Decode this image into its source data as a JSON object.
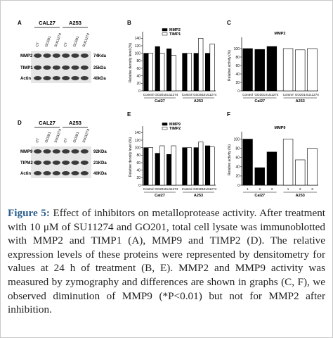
{
  "blots": [
    {
      "label": "A",
      "groups": [
        "CAL27",
        "A253"
      ],
      "lanes": [
        "CT",
        "GO201",
        "SU11274",
        "CT",
        "GO201",
        "SU11274"
      ],
      "rows": [
        {
          "name": "MMP2",
          "size": "74Kda"
        },
        {
          "name": "TIMP1",
          "size": "25kDa"
        },
        {
          "name": "Actin",
          "size": "40kDa"
        }
      ]
    },
    {
      "label": "D",
      "groups": [
        "CAL27",
        "A253"
      ],
      "lanes": [
        "CT",
        "GO201",
        "SU11274",
        "CT",
        "GO201",
        "SU11274"
      ],
      "rows": [
        {
          "name": "MMP9",
          "size": "92KDa"
        },
        {
          "name": "TIPM2",
          "size": "21KDa"
        },
        {
          "name": "Actin",
          "size": "40KDa"
        }
      ]
    }
  ],
  "chart_data": [
    {
      "type": "bar",
      "label": "B",
      "y_label": "Relative density level (%)",
      "categories": [
        "Control",
        "GO201",
        "SU11274",
        "Control",
        "GO201",
        "SU11274"
      ],
      "groups": [
        "Cal27",
        "A253"
      ],
      "series": [
        {
          "name": "MMP2",
          "color": "#000000",
          "values": [
            100,
            118,
            112,
            100,
            100,
            100
          ]
        },
        {
          "name": "TIMP1",
          "color": "#ffffff",
          "values": [
            100,
            100,
            95,
            100,
            140,
            125
          ]
        }
      ],
      "ylim": [
        0,
        150
      ],
      "yticks": [
        0,
        20,
        40,
        60,
        80,
        100,
        120,
        140
      ]
    },
    {
      "type": "bar",
      "label": "C",
      "title": "MMP2",
      "y_label": "Relative activity (%)",
      "categories": [
        "Control",
        "GO201",
        "SU11274",
        "Control",
        "GO201",
        "SU11274"
      ],
      "groups": [
        "Cal27",
        "A253"
      ],
      "series": [
        {
          "color": "#000000",
          "values": [
            100,
            98,
            105,
            null,
            null,
            null
          ]
        },
        {
          "color": "#ffffff",
          "values": [
            null,
            null,
            null,
            100,
            97,
            100
          ]
        }
      ],
      "ylim": [
        0,
        120
      ],
      "yticks": [
        0,
        20,
        40,
        60,
        80,
        100
      ]
    },
    {
      "type": "bar",
      "label": "E",
      "y_label": "Relative density level (%)",
      "categories": [
        "Control",
        "GO201",
        "SU11274",
        "Control",
        "GO201",
        "SU11274"
      ],
      "groups": [
        "Cal27",
        "A253"
      ],
      "series": [
        {
          "name": "MMP9",
          "color": "#000000",
          "values": [
            100,
            85,
            82,
            100,
            100,
            105
          ]
        },
        {
          "name": "TIMP2",
          "color": "#ffffff",
          "values": [
            100,
            105,
            105,
            100,
            115,
            102
          ]
        }
      ],
      "ylim": [
        0,
        150
      ],
      "yticks": [
        0,
        20,
        40,
        60,
        80,
        100,
        120,
        140
      ]
    },
    {
      "type": "bar",
      "label": "F",
      "title": "MMP9",
      "y_label": "Relative activity (%)",
      "categories": [
        "1",
        "2",
        "3",
        "1",
        "2",
        "3"
      ],
      "groups": [
        "Cal27",
        "A253"
      ],
      "series": [
        {
          "color": "#000000",
          "values": [
            100,
            38,
            72,
            null,
            null,
            null
          ]
        },
        {
          "color": "#ffffff",
          "values": [
            null,
            null,
            null,
            100,
            55,
            80
          ]
        }
      ],
      "ylim": [
        0,
        110
      ],
      "yticks": [
        0,
        20,
        40,
        60,
        80,
        100
      ]
    }
  ],
  "caption": {
    "label": "Figure 5:",
    "text": "Effect of inhibitors on metalloprotease activity. After treatment with 10 μM of SU11274 and GO201, total cell lysate was immunoblotted with MMP2 and TIMP1 (A), MMP9 and TIMP2 (D). The relative expression levels of these proteins were represented by densitometry for values at 24 h of treatment (B, E). MMP2 and MMP9 activity was measured by zymography and differences are shown in graphs (C, F), we observed diminution of MMP9 (*P<0.01) but not for MMP2 after inhibition."
  }
}
